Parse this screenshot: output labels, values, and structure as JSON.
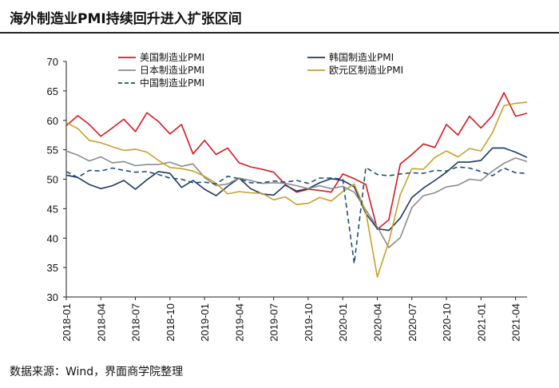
{
  "title": "海外制造业PMI持续回升进入扩张区间",
  "source": "数据来源：Wind，界面商学院整理",
  "chart_data": {
    "type": "line",
    "ylim": [
      30,
      70
    ],
    "yticks": [
      30,
      35,
      40,
      45,
      50,
      55,
      60,
      65,
      70
    ],
    "x_start": "2018-01",
    "xticks": [
      "2018-01",
      "2018-04",
      "2018-07",
      "2018-10",
      "2019-01",
      "2019-04",
      "2019-07",
      "2019-10",
      "2020-01",
      "2020-04",
      "2020-07",
      "2020-10",
      "2021-01",
      "2021-04"
    ],
    "legend_position": "top",
    "series": [
      {
        "name": "美国制造业PMI",
        "color": "#d71920",
        "dash": "",
        "values": [
          59.1,
          60.8,
          59.3,
          57.3,
          58.7,
          60.2,
          58.1,
          61.3,
          59.8,
          57.7,
          59.3,
          54.3,
          56.6,
          54.2,
          55.3,
          52.8,
          52.1,
          51.7,
          51.2,
          49.1,
          47.8,
          48.3,
          48.1,
          47.8,
          50.9,
          50.1,
          49.1,
          41.5,
          43.1,
          52.6,
          54.2,
          56.0,
          55.4,
          59.3,
          57.5,
          60.7,
          58.7,
          60.8,
          64.7,
          60.7,
          61.2
        ]
      },
      {
        "name": "韩国制造业PMI",
        "color": "#1f3864",
        "dash": "",
        "values": [
          50.7,
          50.3,
          49.1,
          48.4,
          48.9,
          49.8,
          48.3,
          49.9,
          51.3,
          51.0,
          48.6,
          49.8,
          48.3,
          47.2,
          48.8,
          50.2,
          48.4,
          47.5,
          47.3,
          49.0,
          48.0,
          48.4,
          49.4,
          50.1,
          49.8,
          48.7,
          44.2,
          41.6,
          41.3,
          43.4,
          46.9,
          48.5,
          49.8,
          51.2,
          52.9,
          52.9,
          53.2,
          55.3,
          55.3,
          54.6,
          53.7
        ]
      },
      {
        "name": "日本制造业PMI",
        "color": "#8c8c8c",
        "dash": "",
        "values": [
          54.8,
          54.1,
          53.1,
          53.8,
          52.8,
          53.0,
          52.3,
          52.5,
          52.5,
          52.9,
          52.2,
          52.6,
          50.3,
          48.9,
          49.2,
          50.2,
          49.8,
          49.3,
          49.4,
          49.3,
          48.9,
          48.4,
          48.9,
          48.4,
          48.8,
          47.8,
          44.8,
          41.9,
          38.4,
          40.1,
          45.2,
          47.2,
          47.7,
          48.7,
          49.0,
          50.0,
          49.8,
          51.4,
          52.7,
          53.6,
          53.0
        ]
      },
      {
        "name": "欧元区制造业PMI",
        "color": "#c9a02a",
        "dash": "",
        "values": [
          59.6,
          58.6,
          56.6,
          56.2,
          55.5,
          54.9,
          55.1,
          54.6,
          53.2,
          52.0,
          51.8,
          51.4,
          50.5,
          49.3,
          47.5,
          47.9,
          47.7,
          47.6,
          46.5,
          47.0,
          45.7,
          45.9,
          46.9,
          46.3,
          47.9,
          49.2,
          44.5,
          33.4,
          39.4,
          47.4,
          51.8,
          51.7,
          53.7,
          54.8,
          53.8,
          55.2,
          54.8,
          57.9,
          62.5,
          62.9,
          63.1
        ]
      },
      {
        "name": "中国制造业PMI",
        "color": "#1f4e79",
        "dash": "6,4",
        "values": [
          51.3,
          50.3,
          51.5,
          51.4,
          51.9,
          51.5,
          51.2,
          51.3,
          50.8,
          50.2,
          50.0,
          49.4,
          49.5,
          49.2,
          50.5,
          50.1,
          49.4,
          49.4,
          49.7,
          49.5,
          49.8,
          49.3,
          50.2,
          50.2,
          50.0,
          35.7,
          52.0,
          50.8,
          50.6,
          50.9,
          51.1,
          51.0,
          51.5,
          51.4,
          52.1,
          51.9,
          51.3,
          50.6,
          51.9,
          51.1,
          51.0
        ]
      }
    ]
  }
}
